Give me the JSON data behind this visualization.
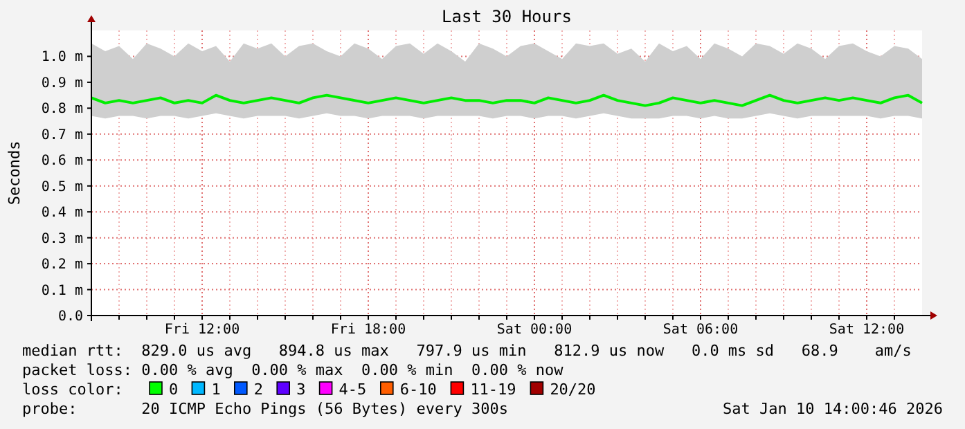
{
  "chart_data": {
    "type": "line",
    "title": "Last 30 Hours",
    "ylabel": "Seconds",
    "x": [
      "2026-01-09T08:00",
      "2026-01-09T08:30",
      "2026-01-09T09:00",
      "2026-01-09T09:30",
      "2026-01-09T10:00",
      "2026-01-09T10:30",
      "2026-01-09T11:00",
      "2026-01-09T11:30",
      "2026-01-09T12:00",
      "2026-01-09T12:30",
      "2026-01-09T13:00",
      "2026-01-09T13:30",
      "2026-01-09T14:00",
      "2026-01-09T14:30",
      "2026-01-09T15:00",
      "2026-01-09T15:30",
      "2026-01-09T16:00",
      "2026-01-09T16:30",
      "2026-01-09T17:00",
      "2026-01-09T17:30",
      "2026-01-09T18:00",
      "2026-01-09T18:30",
      "2026-01-09T19:00",
      "2026-01-09T19:30",
      "2026-01-09T20:00",
      "2026-01-09T20:30",
      "2026-01-09T21:00",
      "2026-01-09T21:30",
      "2026-01-09T22:00",
      "2026-01-09T22:30",
      "2026-01-09T23:00",
      "2026-01-09T23:30",
      "2026-01-10T00:00",
      "2026-01-10T00:30",
      "2026-01-10T01:00",
      "2026-01-10T01:30",
      "2026-01-10T02:00",
      "2026-01-10T02:30",
      "2026-01-10T03:00",
      "2026-01-10T03:30",
      "2026-01-10T04:00",
      "2026-01-10T04:30",
      "2026-01-10T05:00",
      "2026-01-10T05:30",
      "2026-01-10T06:00",
      "2026-01-10T06:30",
      "2026-01-10T07:00",
      "2026-01-10T07:30",
      "2026-01-10T08:00",
      "2026-01-10T08:30",
      "2026-01-10T09:00",
      "2026-01-10T09:30",
      "2026-01-10T10:00",
      "2026-01-10T10:30",
      "2026-01-10T11:00",
      "2026-01-10T11:30",
      "2026-01-10T12:00",
      "2026-01-10T12:30",
      "2026-01-10T13:00",
      "2026-01-10T13:30",
      "2026-01-10T14:00"
    ],
    "series": [
      {
        "color": "#00ee00",
        "values": [
          0.84,
          0.82,
          0.83,
          0.82,
          0.83,
          0.84,
          0.82,
          0.83,
          0.82,
          0.85,
          0.83,
          0.82,
          0.83,
          0.84,
          0.83,
          0.82,
          0.84,
          0.85,
          0.84,
          0.83,
          0.82,
          0.83,
          0.84,
          0.83,
          0.82,
          0.83,
          0.84,
          0.83,
          0.83,
          0.82,
          0.83,
          0.83,
          0.82,
          0.84,
          0.83,
          0.82,
          0.83,
          0.85,
          0.83,
          0.82,
          0.81,
          0.82,
          0.84,
          0.83,
          0.82,
          0.83,
          0.82,
          0.81,
          0.83,
          0.85,
          0.83,
          0.82,
          0.83,
          0.84,
          0.83,
          0.84,
          0.83,
          0.82,
          0.84,
          0.85,
          0.82
        ],
        "lower": [
          0.77,
          0.76,
          0.77,
          0.77,
          0.76,
          0.77,
          0.77,
          0.76,
          0.77,
          0.78,
          0.77,
          0.76,
          0.77,
          0.77,
          0.77,
          0.76,
          0.77,
          0.78,
          0.77,
          0.77,
          0.76,
          0.77,
          0.77,
          0.77,
          0.76,
          0.77,
          0.77,
          0.77,
          0.77,
          0.76,
          0.77,
          0.77,
          0.76,
          0.77,
          0.77,
          0.76,
          0.77,
          0.78,
          0.77,
          0.76,
          0.76,
          0.76,
          0.77,
          0.77,
          0.76,
          0.77,
          0.76,
          0.76,
          0.77,
          0.78,
          0.77,
          0.76,
          0.77,
          0.77,
          0.77,
          0.77,
          0.77,
          0.76,
          0.77,
          0.77,
          0.76
        ],
        "upper": [
          1.05,
          1.02,
          1.04,
          0.99,
          1.05,
          1.03,
          1.0,
          1.05,
          1.02,
          1.04,
          0.98,
          1.05,
          1.03,
          1.05,
          1.0,
          1.04,
          1.05,
          1.02,
          1.0,
          1.05,
          1.03,
          0.99,
          1.04,
          1.05,
          1.01,
          1.05,
          1.02,
          0.98,
          1.05,
          1.03,
          1.0,
          1.04,
          1.05,
          1.02,
          0.99,
          1.05,
          1.04,
          1.05,
          1.01,
          1.03,
          0.98,
          1.05,
          1.02,
          1.04,
          0.99,
          1.05,
          1.03,
          1.0,
          1.05,
          1.04,
          1.01,
          1.05,
          1.03,
          0.99,
          1.04,
          1.05,
          1.02,
          1.0,
          1.04,
          1.03,
          0.99
        ]
      }
    ],
    "xlim": [
      "2026-01-09T08:00",
      "2026-01-10T14:00"
    ],
    "xticks": [
      {
        "value": "2026-01-09T09:00",
        "label": null
      },
      {
        "value": "2026-01-09T10:00",
        "label": null
      },
      {
        "value": "2026-01-09T11:00",
        "label": null
      },
      {
        "value": "2026-01-09T12:00",
        "label": "Fri 12:00"
      },
      {
        "value": "2026-01-09T13:00",
        "label": null
      },
      {
        "value": "2026-01-09T14:00",
        "label": null
      },
      {
        "value": "2026-01-09T15:00",
        "label": null
      },
      {
        "value": "2026-01-09T16:00",
        "label": null
      },
      {
        "value": "2026-01-09T17:00",
        "label": null
      },
      {
        "value": "2026-01-09T18:00",
        "label": "Fri 18:00"
      },
      {
        "value": "2026-01-09T19:00",
        "label": null
      },
      {
        "value": "2026-01-09T20:00",
        "label": null
      },
      {
        "value": "2026-01-09T21:00",
        "label": null
      },
      {
        "value": "2026-01-09T22:00",
        "label": null
      },
      {
        "value": "2026-01-09T23:00",
        "label": null
      },
      {
        "value": "2026-01-10T00:00",
        "label": "Sat 00:00"
      },
      {
        "value": "2026-01-10T01:00",
        "label": null
      },
      {
        "value": "2026-01-10T02:00",
        "label": null
      },
      {
        "value": "2026-01-10T03:00",
        "label": null
      },
      {
        "value": "2026-01-10T04:00",
        "label": null
      },
      {
        "value": "2026-01-10T05:00",
        "label": null
      },
      {
        "value": "2026-01-10T06:00",
        "label": "Sat 06:00"
      },
      {
        "value": "2026-01-10T07:00",
        "label": null
      },
      {
        "value": "2026-01-10T08:00",
        "label": null
      },
      {
        "value": "2026-01-10T09:00",
        "label": null
      },
      {
        "value": "2026-01-10T10:00",
        "label": null
      },
      {
        "value": "2026-01-10T11:00",
        "label": null
      },
      {
        "value": "2026-01-10T12:00",
        "label": "Sat 12:00"
      },
      {
        "value": "2026-01-10T13:00",
        "label": null
      }
    ],
    "ylim": [
      0,
      1.1
    ],
    "yticks": [
      {
        "value": 0,
        "label": "0.0"
      },
      {
        "value": 0.1,
        "label": "0.1 m"
      },
      {
        "value": 0.2,
        "label": "0.2 m"
      },
      {
        "value": 0.3,
        "label": "0.3 m"
      },
      {
        "value": 0.4,
        "label": "0.4 m"
      },
      {
        "value": 0.5,
        "label": "0.5 m"
      },
      {
        "value": 0.6,
        "label": "0.6 m"
      },
      {
        "value": 0.7,
        "label": "0.7 m"
      },
      {
        "value": 0.8,
        "label": "0.8 m"
      },
      {
        "value": 0.9,
        "label": "0.9 m"
      },
      {
        "value": 1.0,
        "label": "1.0 m"
      }
    ],
    "grid": true,
    "marker": "none",
    "line_style": "solid",
    "annotations": [
      "median rtt:  829.0 us avg   894.8 us max   797.9 us min   812.9 us now   0.0 ms sd   68.9    am/s",
      "packet loss: 0.00 % avg  0.00 % max  0.00 % min  0.00 % now",
      "loss color:",
      "0",
      "1",
      "2",
      "3",
      "4-5",
      "6-10",
      "11-19",
      "20/20",
      "probe:       20 ICMP Echo Pings (56 Bytes) every 300s",
      "Sat Jan 10 14:00:46 2026"
    ]
  }
}
